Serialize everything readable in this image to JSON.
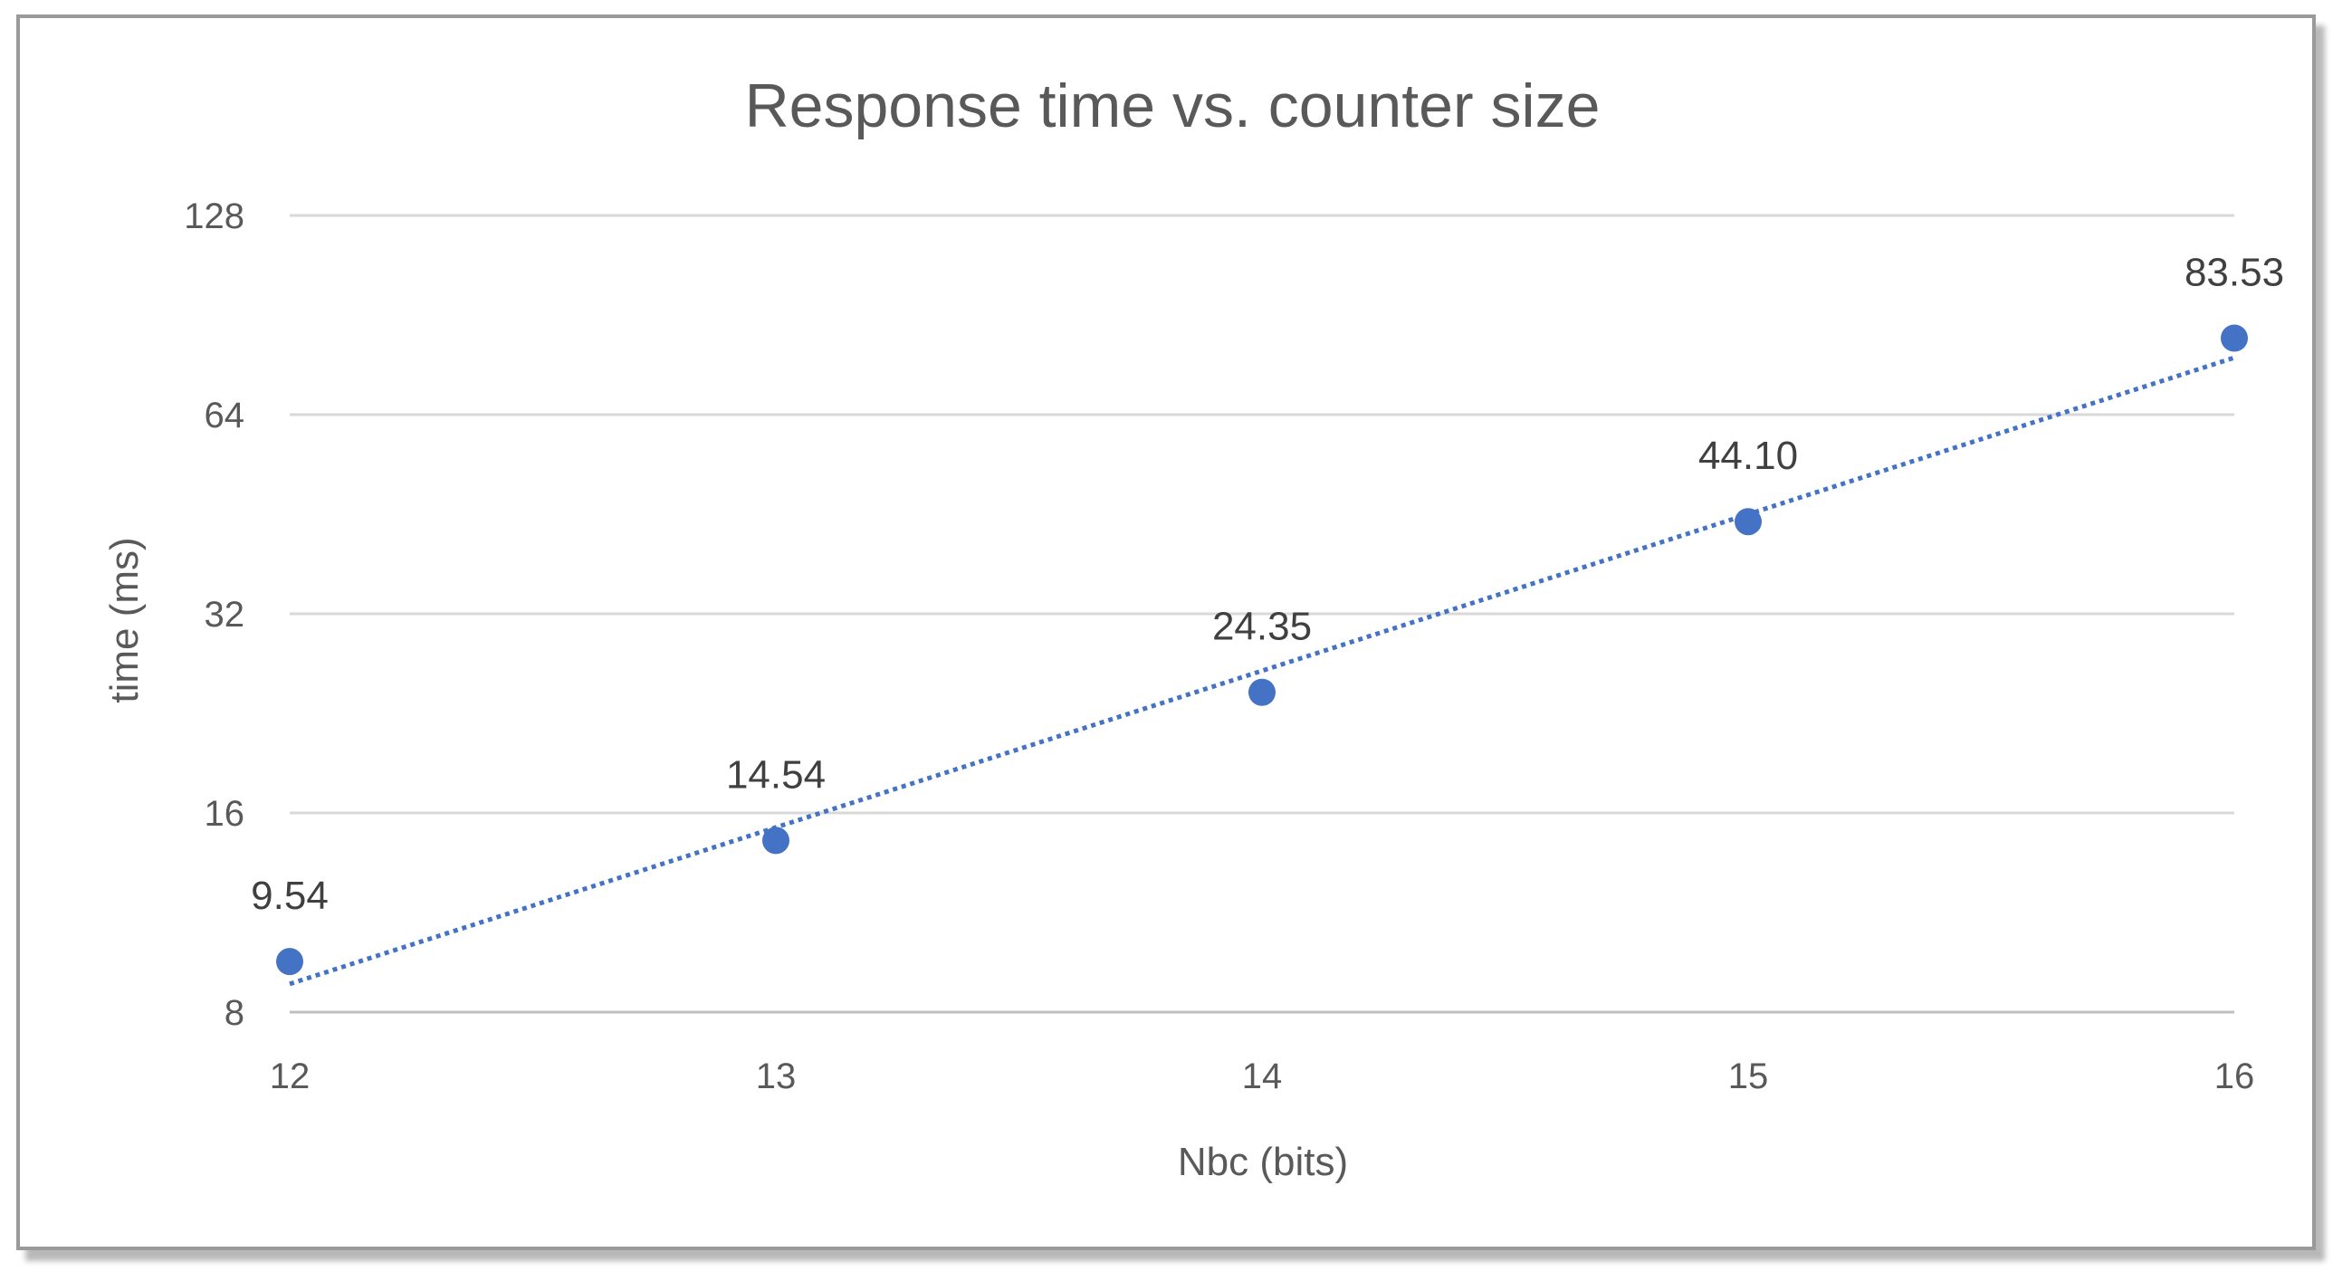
{
  "chart_data": {
    "type": "scatter",
    "title": "Response time vs. counter size",
    "xlabel": "Nbc (bits)",
    "ylabel": "time (ms)",
    "x": [
      12,
      13,
      14,
      15,
      16
    ],
    "x_ticks": [
      "12",
      "13",
      "14",
      "15",
      "16"
    ],
    "xlim": [
      12,
      16
    ],
    "y_scale": "log2",
    "ylim": [
      8,
      128
    ],
    "y_ticks": [
      "8",
      "16",
      "32",
      "64",
      "128"
    ],
    "series": [
      {
        "values": [
          9.54,
          14.54,
          24.35,
          44.1,
          83.53
        ],
        "labels": [
          "9.54",
          "14.54",
          "24.35",
          "44.10",
          "83.53"
        ],
        "color": "#4472C4",
        "trendline": "exponential",
        "trendline_style": "dotted"
      }
    ],
    "grid": "horizontal",
    "legend": "none"
  }
}
